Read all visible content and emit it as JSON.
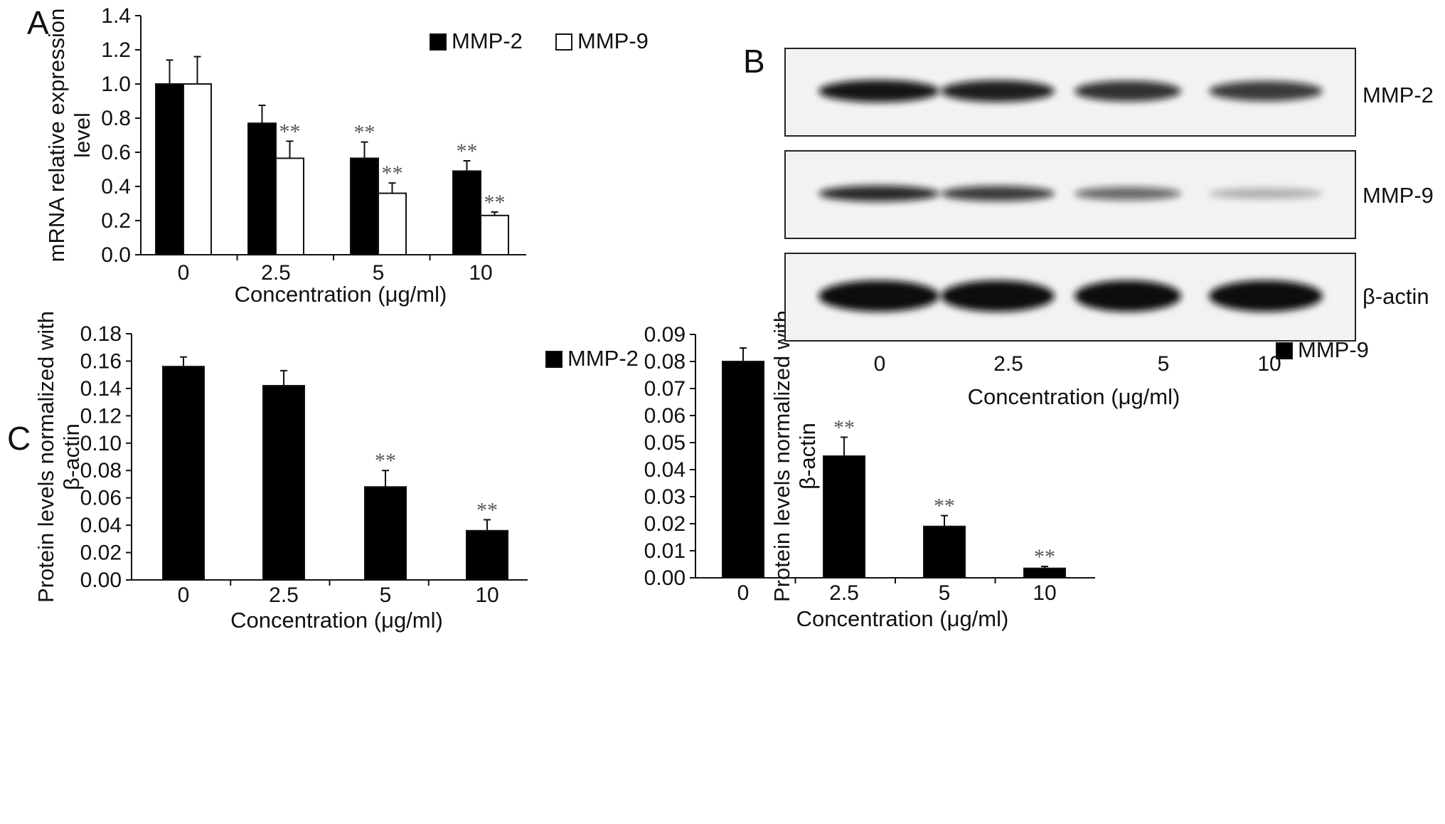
{
  "figure": {
    "panel_labels": [
      "A",
      "B",
      "C"
    ],
    "blot": {
      "lanes": [
        "0",
        "2.5",
        "5",
        "10"
      ],
      "xlabel": "Concentration (μg/ml)",
      "rows": [
        {
          "label": "MMP-2",
          "intensities": [
            0.95,
            0.9,
            0.8,
            0.75
          ]
        },
        {
          "label": "MMP-9",
          "intensities": [
            0.85,
            0.75,
            0.5,
            0.12
          ]
        },
        {
          "label": "β-actin",
          "intensities": [
            1.0,
            1.0,
            1.0,
            1.0
          ]
        }
      ]
    }
  },
  "chart_data": [
    {
      "type": "bar",
      "panel": "A",
      "categories": [
        "0",
        "2.5",
        "5",
        "10"
      ],
      "xlabel": "Concentration (μg/ml)",
      "ylabel_lines": [
        "mRNA relative expression",
        "level"
      ],
      "ylim": [
        0,
        1.4
      ],
      "yticks": [
        "0.0",
        "0.2",
        "0.4",
        "0.6",
        "0.8",
        "1.0",
        "1.2",
        "1.4"
      ],
      "legend_position": "top-right",
      "series": [
        {
          "name": "MMP-2",
          "fill": "#000000",
          "values": [
            1.0,
            0.77,
            0.565,
            0.49
          ],
          "errors": [
            0.14,
            0.105,
            0.095,
            0.06
          ],
          "sig": [
            "",
            "",
            "**",
            "**"
          ]
        },
        {
          "name": "MMP-9",
          "fill": "#ffffff",
          "values": [
            1.0,
            0.565,
            0.36,
            0.23
          ],
          "errors": [
            0.16,
            0.1,
            0.06,
            0.02
          ],
          "sig": [
            "",
            "**",
            "**",
            "**"
          ]
        }
      ]
    },
    {
      "type": "bar",
      "panel": "C-left",
      "categories": [
        "0",
        "2.5",
        "5",
        "10"
      ],
      "xlabel": "Concentration (μg/ml)",
      "ylabel_lines": [
        "Protein levels normalized with",
        "β-actin"
      ],
      "ylim": [
        0,
        0.18
      ],
      "yticks": [
        "0.00",
        "0.02",
        "0.04",
        "0.06",
        "0.08",
        "0.10",
        "0.12",
        "0.14",
        "0.16",
        "0.18"
      ],
      "legend_position": "top-right",
      "series": [
        {
          "name": "MMP-2",
          "fill": "#000000",
          "values": [
            0.156,
            0.142,
            0.068,
            0.036
          ],
          "errors": [
            0.007,
            0.011,
            0.012,
            0.008
          ],
          "sig": [
            "",
            "",
            "**",
            "**"
          ]
        }
      ]
    },
    {
      "type": "bar",
      "panel": "C-right",
      "categories": [
        "0",
        "2.5",
        "5",
        "10"
      ],
      "xlabel": "Concentration (μg/ml)",
      "ylabel_lines": [
        "Protein levels normalized with",
        "β-actin"
      ],
      "ylim": [
        0,
        0.09
      ],
      "yticks": [
        "0.00",
        "0.01",
        "0.02",
        "0.03",
        "0.04",
        "0.05",
        "0.06",
        "0.07",
        "0.08",
        "0.09"
      ],
      "legend_position": "top-right",
      "series": [
        {
          "name": "MMP-9",
          "fill": "#000000",
          "values": [
            0.08,
            0.045,
            0.019,
            0.0035
          ],
          "errors": [
            0.005,
            0.007,
            0.004,
            0.0007
          ],
          "sig": [
            "",
            "**",
            "**",
            "**"
          ]
        }
      ]
    }
  ]
}
